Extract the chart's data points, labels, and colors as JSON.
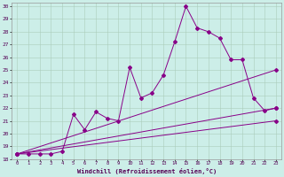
{
  "xlabel": "Windchill (Refroidissement éolien,°C)",
  "bg_color": "#cceee8",
  "grid_color": "#aaccbb",
  "line_color": "#880088",
  "xlim": [
    -0.5,
    23.5
  ],
  "ylim": [
    18,
    30.3
  ],
  "xticks": [
    0,
    1,
    2,
    3,
    4,
    5,
    6,
    7,
    8,
    9,
    10,
    11,
    12,
    13,
    14,
    15,
    16,
    17,
    18,
    19,
    20,
    21,
    22,
    23
  ],
  "yticks": [
    18,
    19,
    20,
    21,
    22,
    23,
    24,
    25,
    26,
    27,
    28,
    29,
    30
  ],
  "line1_x": [
    0,
    1,
    2,
    3,
    4,
    5,
    6,
    7,
    8,
    9,
    10,
    11,
    12,
    13,
    14,
    15,
    16,
    17,
    18,
    19,
    20,
    21,
    22,
    23
  ],
  "line1_y": [
    18.4,
    18.4,
    18.4,
    18.4,
    18.6,
    21.5,
    20.3,
    21.7,
    21.2,
    21.0,
    25.2,
    22.8,
    23.2,
    24.6,
    27.2,
    30.0,
    28.3,
    28.0,
    27.5,
    25.8,
    25.8,
    22.8,
    21.8,
    22.0
  ],
  "line2_x": [
    0,
    23
  ],
  "line2_y": [
    18.4,
    25.0
  ],
  "line3_x": [
    0,
    23
  ],
  "line3_y": [
    18.4,
    22.0
  ],
  "line4_x": [
    0,
    23
  ],
  "line4_y": [
    18.4,
    21.0
  ],
  "marker_size": 2.0,
  "lw": 0.7
}
